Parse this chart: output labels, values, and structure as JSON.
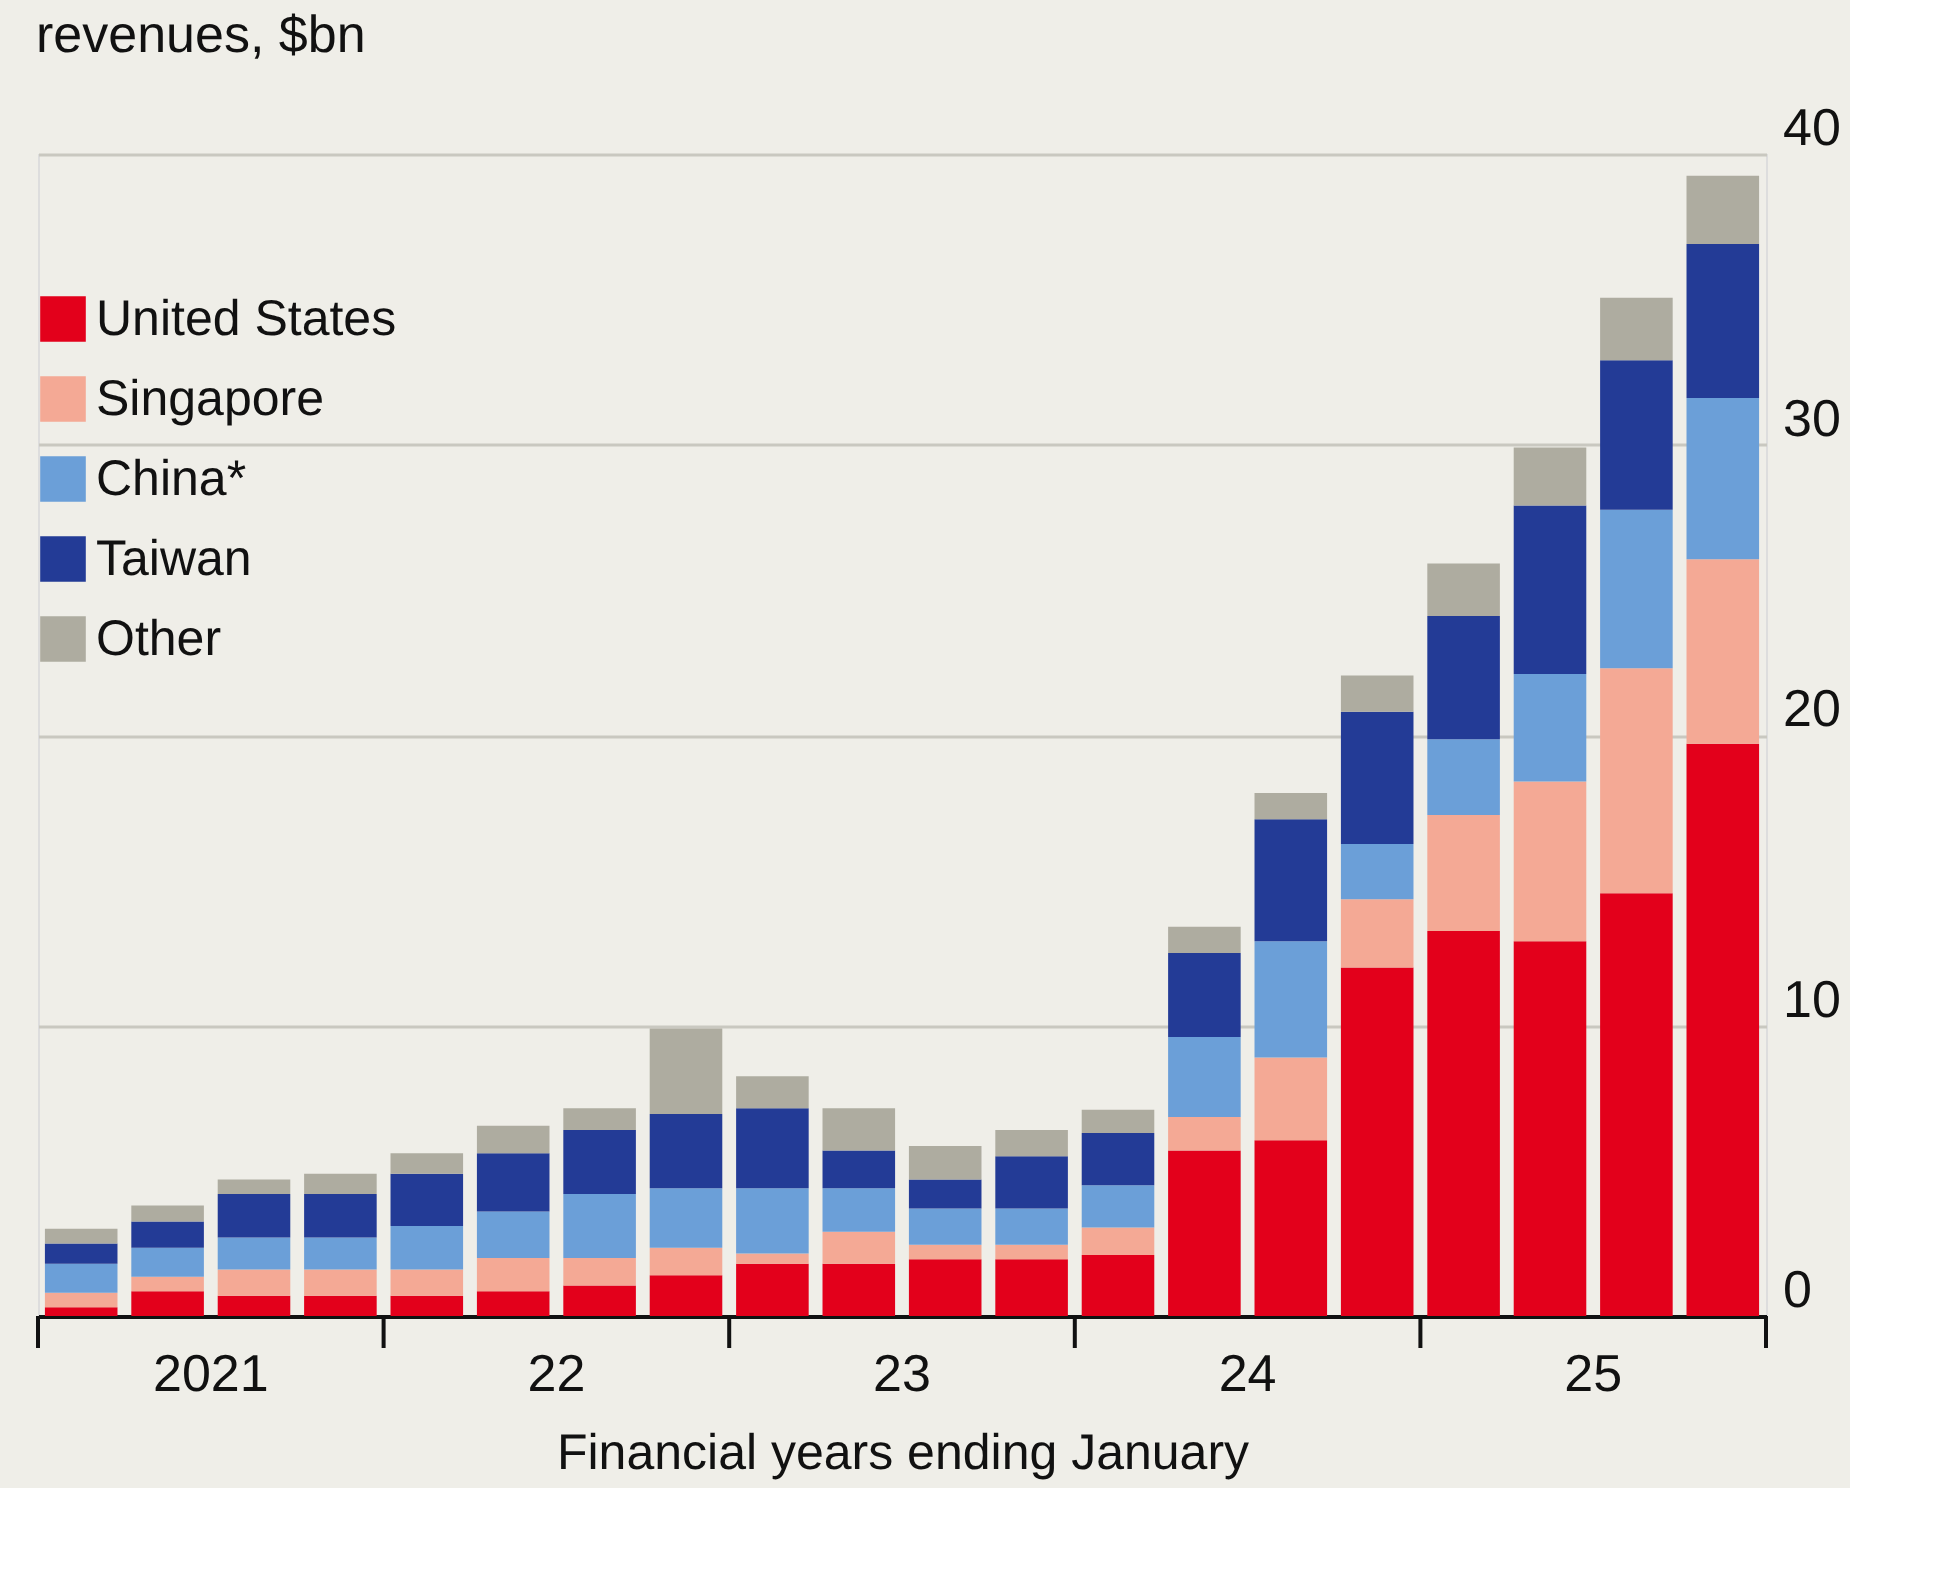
{
  "chart_data": {
    "type": "bar",
    "stacked": true,
    "title": "revenues, $bn",
    "xlabel": "Financial years ending January",
    "categories": [
      null,
      "2021",
      null,
      null,
      null,
      "22",
      null,
      null,
      null,
      "23",
      null,
      null,
      null,
      "24",
      null,
      null,
      null,
      "25",
      null,
      null
    ],
    "ylim": [
      0,
      40
    ],
    "yticks": [
      0,
      10,
      20,
      30,
      40
    ],
    "grid": "y",
    "legend": "top left",
    "series": [
      {
        "name": "United States",
        "color": "#e3001b",
        "values": [
          0.3,
          0.85,
          0.7,
          0.7,
          0.7,
          0.85,
          1.05,
          1.4,
          1.8,
          1.8,
          1.95,
          1.95,
          2.1,
          5.7,
          6.05,
          12.0,
          13.25,
          12.9,
          14.55,
          19.7
        ]
      },
      {
        "name": "Singapore",
        "color": "#f4a995",
        "values": [
          0.5,
          0.5,
          0.9,
          0.9,
          0.9,
          1.15,
          0.95,
          0.95,
          0.35,
          1.1,
          0.5,
          0.5,
          0.95,
          1.15,
          2.85,
          2.35,
          4.0,
          5.5,
          7.75,
          6.35
        ]
      },
      {
        "name": "China*",
        "color": "#6b9fd8",
        "values": [
          1.0,
          1.0,
          1.1,
          1.1,
          1.5,
          1.6,
          2.2,
          2.05,
          2.25,
          1.5,
          1.25,
          1.25,
          1.45,
          2.75,
          4.0,
          1.9,
          2.6,
          3.7,
          5.45,
          5.55
        ]
      },
      {
        "name": "Taiwan",
        "color": "#233b96",
        "values": [
          0.7,
          0.9,
          1.5,
          1.5,
          1.8,
          2.0,
          2.2,
          2.55,
          2.75,
          1.3,
          1.0,
          1.8,
          1.8,
          2.9,
          4.2,
          4.55,
          4.25,
          5.8,
          5.15,
          5.3
        ]
      },
      {
        "name": "Other",
        "color": "#aeaca0",
        "values": [
          0.5,
          0.55,
          0.5,
          0.7,
          0.7,
          0.95,
          0.75,
          2.95,
          1.1,
          1.45,
          1.15,
          0.9,
          0.8,
          0.9,
          0.9,
          1.25,
          1.8,
          2.0,
          2.15,
          2.35
        ]
      }
    ]
  }
}
